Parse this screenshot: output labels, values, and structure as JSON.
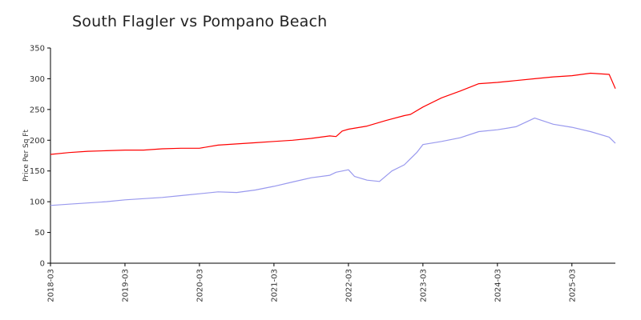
{
  "chart_data": {
    "type": "line",
    "title": "South Flagler vs Pompano Beach",
    "xlabel": "",
    "ylabel": "Price Per Sq Ft",
    "ylim": [
      0,
      350
    ],
    "yticks": [
      0,
      50,
      100,
      150,
      200,
      250,
      300,
      350
    ],
    "xticks": [
      "2018-03",
      "2019-03",
      "2020-03",
      "2021-03",
      "2022-03",
      "2023-03",
      "2024-03",
      "2025-03"
    ],
    "grid": false,
    "legend": "none",
    "x_start": "2018-03",
    "x_end": "2025-10",
    "series": [
      {
        "color": "#ff0000",
        "points": [
          [
            "2018-03",
            177
          ],
          [
            "2018-06",
            180
          ],
          [
            "2018-09",
            182
          ],
          [
            "2018-12",
            183
          ],
          [
            "2019-03",
            184
          ],
          [
            "2019-06",
            184
          ],
          [
            "2019-09",
            186
          ],
          [
            "2019-12",
            187
          ],
          [
            "2020-03",
            187
          ],
          [
            "2020-06",
            192
          ],
          [
            "2020-09",
            194
          ],
          [
            "2020-12",
            196
          ],
          [
            "2021-03",
            198
          ],
          [
            "2021-06",
            200
          ],
          [
            "2021-09",
            203
          ],
          [
            "2021-12",
            207
          ],
          [
            "2022-01",
            206
          ],
          [
            "2022-02",
            215
          ],
          [
            "2022-03",
            218
          ],
          [
            "2022-06",
            223
          ],
          [
            "2022-09",
            232
          ],
          [
            "2022-12",
            240
          ],
          [
            "2023-01",
            242
          ],
          [
            "2023-03",
            254
          ],
          [
            "2023-06",
            269
          ],
          [
            "2023-09",
            280
          ],
          [
            "2023-12",
            292
          ],
          [
            "2024-03",
            294
          ],
          [
            "2024-06",
            297
          ],
          [
            "2024-09",
            300
          ],
          [
            "2024-12",
            303
          ],
          [
            "2025-03",
            305
          ],
          [
            "2025-06",
            309
          ],
          [
            "2025-09",
            307
          ],
          [
            "2025-10",
            284
          ]
        ]
      },
      {
        "color": "#9999ee",
        "points": [
          [
            "2018-03",
            94
          ],
          [
            "2018-06",
            96
          ],
          [
            "2018-09",
            98
          ],
          [
            "2018-12",
            100
          ],
          [
            "2019-03",
            103
          ],
          [
            "2019-06",
            105
          ],
          [
            "2019-09",
            107
          ],
          [
            "2019-12",
            110
          ],
          [
            "2020-03",
            113
          ],
          [
            "2020-06",
            116
          ],
          [
            "2020-09",
            115
          ],
          [
            "2020-12",
            119
          ],
          [
            "2021-03",
            125
          ],
          [
            "2021-06",
            132
          ],
          [
            "2021-09",
            139
          ],
          [
            "2021-12",
            143
          ],
          [
            "2022-01",
            148
          ],
          [
            "2022-03",
            152
          ],
          [
            "2022-04",
            141
          ],
          [
            "2022-06",
            135
          ],
          [
            "2022-08",
            133
          ],
          [
            "2022-10",
            150
          ],
          [
            "2022-12",
            160
          ],
          [
            "2023-02",
            180
          ],
          [
            "2023-03",
            193
          ],
          [
            "2023-06",
            198
          ],
          [
            "2023-09",
            204
          ],
          [
            "2023-12",
            214
          ],
          [
            "2024-03",
            217
          ],
          [
            "2024-06",
            222
          ],
          [
            "2024-09",
            236
          ],
          [
            "2024-12",
            226
          ],
          [
            "2025-03",
            221
          ],
          [
            "2025-06",
            214
          ],
          [
            "2025-09",
            205
          ],
          [
            "2025-10",
            195
          ]
        ]
      }
    ]
  }
}
